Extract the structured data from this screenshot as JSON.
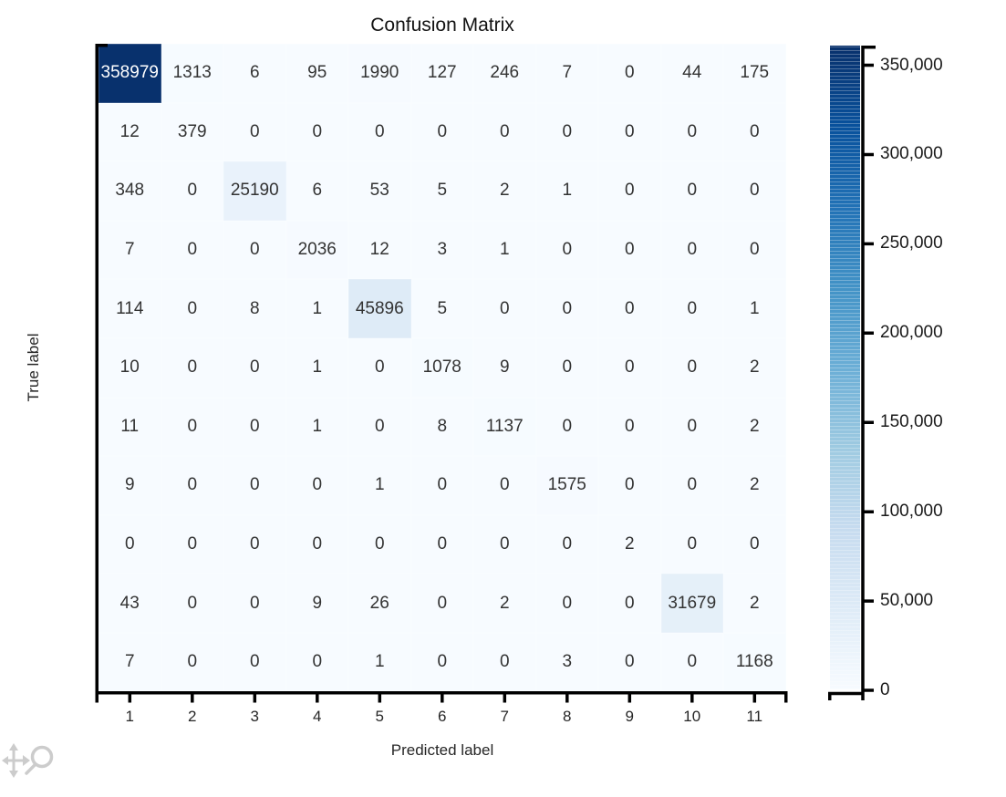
{
  "chart_data": {
    "type": "heatmap",
    "title": "Confusion Matrix",
    "xlabel": "Predicted label",
    "ylabel": "True label",
    "x_tick_labels": [
      "1",
      "2",
      "3",
      "4",
      "5",
      "6",
      "7",
      "8",
      "9",
      "10",
      "11"
    ],
    "matrix": [
      [
        358979,
        1313,
        6,
        95,
        1990,
        127,
        246,
        7,
        0,
        44,
        175
      ],
      [
        12,
        379,
        0,
        0,
        0,
        0,
        0,
        0,
        0,
        0,
        0
      ],
      [
        348,
        0,
        25190,
        6,
        53,
        5,
        2,
        1,
        0,
        0,
        0
      ],
      [
        7,
        0,
        0,
        2036,
        12,
        3,
        1,
        0,
        0,
        0,
        0
      ],
      [
        114,
        0,
        8,
        1,
        45896,
        5,
        0,
        0,
        0,
        0,
        1
      ],
      [
        10,
        0,
        0,
        1,
        0,
        1078,
        9,
        0,
        0,
        0,
        2
      ],
      [
        11,
        0,
        0,
        1,
        0,
        8,
        1137,
        0,
        0,
        0,
        2
      ],
      [
        9,
        0,
        0,
        0,
        1,
        0,
        0,
        1575,
        0,
        0,
        2
      ],
      [
        0,
        0,
        0,
        0,
        0,
        0,
        0,
        0,
        2,
        0,
        0
      ],
      [
        43,
        0,
        0,
        9,
        26,
        0,
        2,
        0,
        0,
        31679,
        2
      ],
      [
        7,
        0,
        0,
        0,
        1,
        0,
        0,
        3,
        0,
        0,
        1168
      ]
    ],
    "colormap": {
      "name": "Blues",
      "low": "#f7fbff",
      "high": "#08306b"
    },
    "color_range": [
      0,
      361000
    ],
    "colorbar_position": "right",
    "colorbar_ticks": [
      {
        "value": 350000,
        "label": "350,000"
      },
      {
        "value": 300000,
        "label": "300,000"
      },
      {
        "value": 250000,
        "label": "250,000"
      },
      {
        "value": 200000,
        "label": "200,000"
      },
      {
        "value": 150000,
        "label": "150,000"
      },
      {
        "value": 100000,
        "label": "100,000"
      },
      {
        "value": 50000,
        "label": "50,000"
      },
      {
        "value": 0,
        "label": "0"
      }
    ],
    "grid": false
  },
  "text_colors": {
    "cell": "#333333",
    "cell_on_dark": "#ffffff",
    "axis_text": "#262626"
  },
  "controls": {
    "pan_icon": "pan-arrows",
    "zoom_icon": "magnifier",
    "icon_color": "#cccccc"
  }
}
